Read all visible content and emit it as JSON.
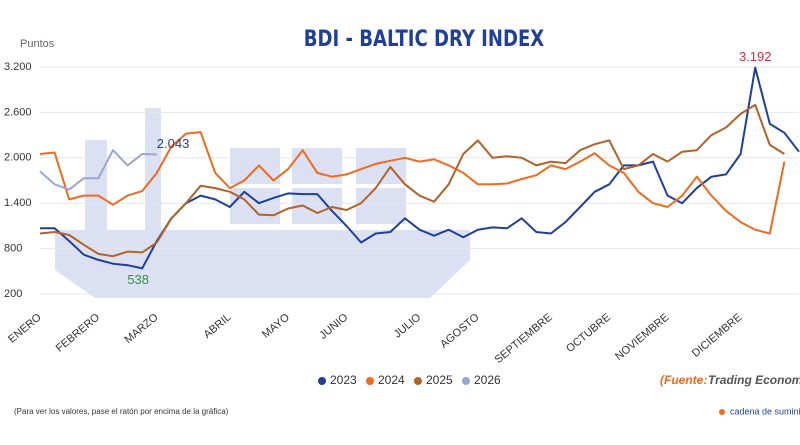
{
  "chart_data": {
    "type": "line",
    "title": "BDI - BALTIC DRY INDEX",
    "y_label": "Puntos",
    "categories": [
      "ENERO",
      null,
      null,
      null,
      "FEBRERO",
      null,
      null,
      null,
      "MARZO",
      null,
      null,
      null,
      null,
      "ABRIL",
      null,
      null,
      null,
      "MAYO",
      null,
      null,
      null,
      "JUNIO",
      null,
      null,
      null,
      null,
      "JULIO",
      null,
      null,
      null,
      "AGOSTO",
      null,
      null,
      null,
      null,
      "SEPTIEMBRE",
      null,
      null,
      null,
      "OCTUBRE",
      null,
      null,
      null,
      "NOVIEMBRE",
      null,
      null,
      null,
      null,
      "DICIEMBRE",
      null,
      null,
      null,
      null
    ],
    "series": [
      {
        "name": "2023",
        "color": "#1f3f99",
        "values": [
          1070,
          1070,
          900,
          720,
          650,
          600,
          580,
          538,
          900,
          1200,
          1400,
          1500,
          1450,
          1350,
          1550,
          1400,
          1470,
          1530,
          1520,
          1520,
          1300,
          1100,
          880,
          1000,
          1020,
          1200,
          1050,
          970,
          1050,
          950,
          1050,
          1080,
          1070,
          1200,
          1020,
          1000,
          1150,
          1350,
          1550,
          1650,
          1900,
          1900,
          1950,
          1500,
          1400,
          1600,
          1750,
          1780,
          2050,
          3192,
          2450,
          2330,
          2080
        ],
        "value_labels": [
          null,
          null,
          null,
          null,
          null,
          null,
          null,
          "538",
          null,
          null,
          null,
          null,
          null,
          null,
          null,
          null,
          null,
          null,
          null,
          null,
          null,
          null,
          null,
          null,
          null,
          null,
          null,
          null,
          null,
          null,
          null,
          null,
          null,
          null,
          null,
          null,
          null,
          null,
          null,
          null,
          null,
          null,
          null,
          null,
          null,
          null,
          null,
          null,
          null,
          "3.192",
          null,
          null,
          null
        ]
      },
      {
        "name": "2024",
        "color": "#f06a1f",
        "values": [
          2050,
          2070,
          1450,
          1500,
          1500,
          1380,
          1500,
          1560,
          1800,
          2150,
          2320,
          2340,
          1800,
          1600,
          1700,
          1900,
          1700,
          1850,
          2100,
          1800,
          1750,
          1780,
          1850,
          1920,
          1960,
          2000,
          1950,
          1980,
          1900,
          1800,
          1650,
          1650,
          1660,
          1720,
          1770,
          1900,
          1850,
          1950,
          2060,
          1900,
          1800,
          1550,
          1400,
          1350,
          1500,
          1750,
          1500,
          1300,
          1150,
          1050,
          1000,
          1950,
          null
        ]
      },
      {
        "name": "2025",
        "color": "#b0632a",
        "values": [
          1000,
          1020,
          980,
          850,
          730,
          700,
          760,
          750,
          880,
          1200,
          1400,
          1630,
          1600,
          1550,
          1450,
          1250,
          1240,
          1330,
          1370,
          1270,
          1350,
          1310,
          1400,
          1600,
          1880,
          1650,
          1500,
          1420,
          1650,
          2050,
          2230,
          2000,
          2020,
          2000,
          1900,
          1950,
          1930,
          2100,
          2180,
          2230,
          1850,
          1900,
          2050,
          1950,
          2080,
          2100,
          2300,
          2400,
          2580,
          2700,
          2170,
          2050,
          null
        ]
      },
      {
        "name": "2026",
        "color": "#9aa5d6",
        "values": [
          1820,
          1650,
          1580,
          1730,
          1730,
          2100,
          1900,
          2050,
          2043,
          null,
          null,
          null,
          null,
          null,
          null,
          null,
          null,
          null,
          null,
          null,
          null,
          null,
          null,
          null,
          null,
          null,
          null,
          null,
          null,
          null,
          null,
          null,
          null,
          null,
          null,
          null,
          null,
          null,
          null,
          null,
          null,
          null,
          null,
          null,
          null,
          null,
          null,
          null,
          null,
          null,
          null,
          null,
          null
        ],
        "value_labels": [
          null,
          null,
          null,
          null,
          null,
          null,
          null,
          null,
          "2.043",
          null,
          null,
          null,
          null,
          null,
          null,
          null,
          null,
          null,
          null,
          null,
          null,
          null,
          null,
          null,
          null,
          null,
          null,
          null,
          null,
          null,
          null,
          null,
          null,
          null,
          null,
          null,
          null,
          null,
          null,
          null,
          null,
          null,
          null,
          null,
          null,
          null,
          null,
          null,
          null,
          null,
          null,
          null,
          null
        ]
      }
    ],
    "ylim": [
      200,
      3200
    ],
    "yticks": [
      {
        "value": 3200,
        "label": "3.200"
      },
      {
        "value": 2600,
        "label": "2.600"
      },
      {
        "value": 2000,
        "label": "2.000"
      },
      {
        "value": 1400,
        "label": "1.400"
      },
      800,
      200
    ],
    "grid": true,
    "legend": "bottom",
    "source_label": "(Fuente:",
    "source": "Trading Economi",
    "note": "(Para ver los valores, pase el ratón por encima de la gráfica)",
    "brand": "cadena de suministro"
  }
}
